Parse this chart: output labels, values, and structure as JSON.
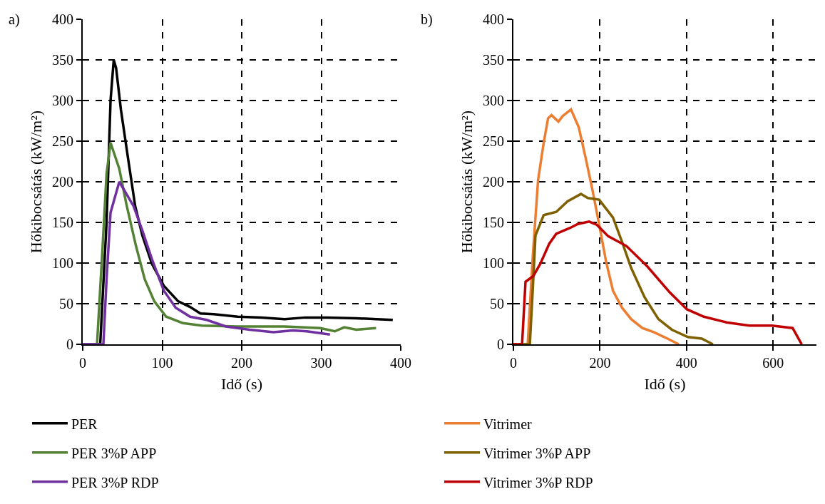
{
  "chart_data": [
    {
      "type": "line",
      "xlabel": "Idő (s)",
      "ylabel": "Hőkibocsátás (kW/m²)",
      "annotations": [
        "a)"
      ],
      "xlim": [
        0,
        400
      ],
      "xticks": [
        0,
        100,
        200,
        300,
        400
      ],
      "ylim": [
        0,
        400
      ],
      "yticks": [
        0,
        50,
        100,
        150,
        200,
        250,
        300,
        350,
        400
      ],
      "grid": true,
      "legend": "bottom",
      "series": [
        {
          "name": "PER",
          "color": "#000000",
          "x": [
            0,
            22,
            30,
            35,
            39,
            42,
            48,
            57,
            66,
            75,
            87,
            102,
            120,
            135,
            148,
            165,
            195,
            225,
            254,
            280,
            308,
            344,
            370,
            390
          ],
          "values": [
            0,
            0,
            150,
            300,
            350,
            340,
            289,
            229,
            170,
            134,
            99,
            72,
            53,
            46,
            38,
            37,
            34,
            33,
            31,
            33,
            33,
            32,
            31,
            30
          ]
        },
        {
          "name": "PER 3%P APP",
          "color": "#548235",
          "x": [
            0,
            18,
            25,
            30,
            35,
            46,
            55,
            67,
            78,
            90,
            105,
            126,
            150,
            195,
            254,
            299,
            317,
            329,
            344,
            369
          ],
          "values": [
            0,
            0,
            120,
            210,
            248,
            216,
            172,
            121,
            80,
            53,
            34,
            26,
            23,
            22,
            22,
            20,
            16,
            21,
            18,
            20
          ]
        },
        {
          "name": "PER 3%P RDP",
          "color": "#7030a0",
          "x": [
            0,
            26,
            30,
            35,
            46,
            64,
            75,
            87,
            102,
            117,
            135,
            156,
            180,
            210,
            240,
            264,
            282,
            311
          ],
          "values": [
            0,
            0,
            80,
            162,
            200,
            170,
            140,
            105,
            66,
            45,
            34,
            30,
            22,
            18,
            15,
            17,
            16,
            12
          ]
        }
      ]
    },
    {
      "type": "line",
      "xlabel": "Idő (s)",
      "ylabel": "Hőkibocsátás (kW/m²)",
      "annotations": [
        "b)"
      ],
      "xlim": [
        0,
        700
      ],
      "xticks": [
        0,
        200,
        400,
        600
      ],
      "ylim": [
        0,
        400
      ],
      "yticks": [
        0,
        50,
        100,
        150,
        200,
        250,
        300,
        350,
        400
      ],
      "grid": true,
      "legend": "bottom",
      "series": [
        {
          "name": "Vitrimer",
          "color": "#ed7d31",
          "x": [
            0,
            33,
            45,
            57,
            70,
            80,
            88,
            104,
            114,
            133,
            151,
            167,
            183,
            199,
            214,
            230,
            251,
            272,
            298,
            324,
            356,
            382
          ],
          "values": [
            0,
            0,
            110,
            202,
            248,
            278,
            282,
            274,
            281,
            289,
            267,
            229,
            189,
            145,
            102,
            66,
            45,
            31,
            20,
            15,
            7,
            0
          ]
        },
        {
          "name": "Vitrimer 3%P APP",
          "color": "#7f6000",
          "x": [
            0,
            38,
            45,
            51,
            70,
            99,
            125,
            156,
            172,
            198,
            230,
            251,
            272,
            303,
            335,
            366,
            403,
            435,
            461
          ],
          "values": [
            0,
            0,
            70,
            134,
            159,
            163,
            176,
            185,
            180,
            178,
            156,
            126,
            94,
            58,
            31,
            18,
            9,
            7,
            0
          ]
        },
        {
          "name": "Vitrimer 3%P RDP",
          "color": "#c00000",
          "x": [
            0,
            20,
            28,
            46,
            62,
            83,
            99,
            130,
            149,
            175,
            193,
            219,
            261,
            309,
            361,
            401,
            440,
            492,
            545,
            597,
            645,
            666
          ],
          "values": [
            0,
            0,
            77,
            84,
            99,
            124,
            136,
            143,
            148,
            151,
            147,
            133,
            121,
            96,
            64,
            43,
            34,
            27,
            23,
            23,
            20,
            0
          ]
        }
      ]
    }
  ]
}
